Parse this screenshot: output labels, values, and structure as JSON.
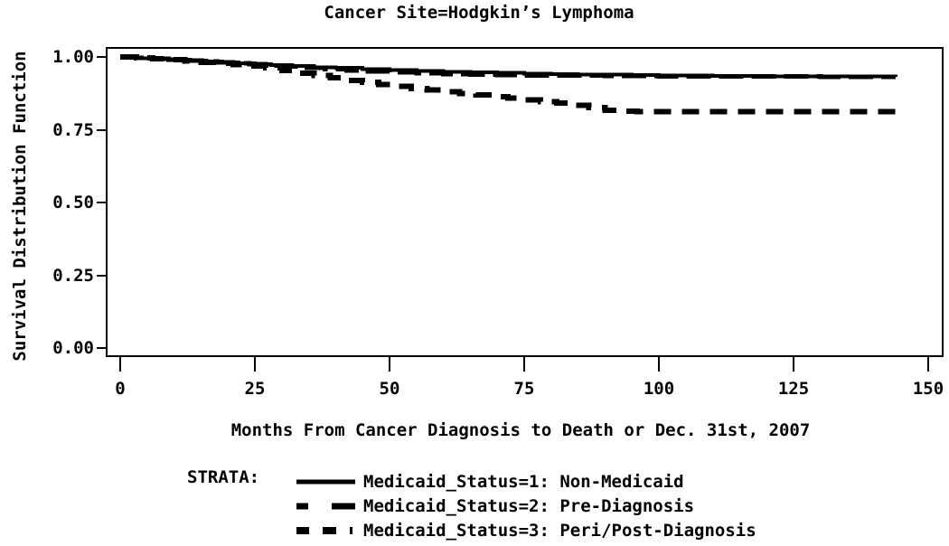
{
  "title": "Cancer Site=Hodgkin’s Lymphoma",
  "x_axis": {
    "label": "Months From Cancer Diagnosis to Death or Dec. 31st, 2007",
    "ticks": [
      0,
      25,
      50,
      75,
      100,
      125,
      150
    ]
  },
  "y_axis": {
    "label": "Survival Distribution Function",
    "ticks": [
      "1.00",
      "0.75",
      "0.50",
      "0.25",
      "0.00"
    ]
  },
  "legend": {
    "title": "STRATA:"
  },
  "colors": {
    "foreground": "#000000",
    "background": "#ffffff"
  },
  "chart_data": {
    "type": "line",
    "subtype": "kaplan-meier-step-survival",
    "title": "Cancer Site=Hodgkin’s Lymphoma",
    "xlabel": "Months From Cancer Diagnosis to Death or Dec. 31st, 2007",
    "ylabel": "Survival Distribution Function",
    "xlim": [
      0,
      150
    ],
    "ylim": [
      0.0,
      1.0
    ],
    "x_ticks": [
      0,
      25,
      50,
      75,
      100,
      125,
      150
    ],
    "y_ticks": [
      0.0,
      0.25,
      0.5,
      0.75,
      1.0
    ],
    "grid": false,
    "legend_position": "below",
    "series": [
      {
        "name": "Medicaid_Status=1: Non-Medicaid",
        "line_style": "solid",
        "x": [
          0,
          2,
          4,
          7,
          10,
          13,
          16,
          19,
          22,
          25,
          28,
          32,
          36,
          40,
          45,
          50,
          55,
          60,
          65,
          70,
          75,
          80,
          85,
          90,
          95,
          100,
          105,
          110,
          120,
          130,
          144
        ],
        "y": [
          1.0,
          0.998,
          0.996,
          0.993,
          0.99,
          0.987,
          0.984,
          0.981,
          0.978,
          0.975,
          0.972,
          0.969,
          0.965,
          0.962,
          0.958,
          0.955,
          0.952,
          0.949,
          0.947,
          0.945,
          0.943,
          0.941,
          0.94,
          0.939,
          0.938,
          0.937,
          0.936,
          0.935,
          0.934,
          0.933,
          0.932
        ]
      },
      {
        "name": "Medicaid_Status=2: Pre-Diagnosis",
        "line_style": "long-dash",
        "x": [
          0,
          3,
          6,
          9,
          12,
          15,
          18,
          21,
          24,
          27,
          30,
          34,
          38,
          42,
          46,
          50,
          55,
          60,
          65,
          70,
          75,
          80,
          90,
          100,
          110,
          120,
          130,
          144
        ],
        "y": [
          1.0,
          0.997,
          0.994,
          0.991,
          0.988,
          0.985,
          0.981,
          0.978,
          0.975,
          0.971,
          0.967,
          0.962,
          0.958,
          0.954,
          0.95,
          0.947,
          0.944,
          0.941,
          0.939,
          0.938,
          0.937,
          0.936,
          0.935,
          0.934,
          0.933,
          0.933,
          0.932,
          0.932
        ]
      },
      {
        "name": "Medicaid_Status=3: Peri/Post-Diagnosis",
        "line_style": "dash",
        "x": [
          0,
          3,
          6,
          9,
          12,
          15,
          18,
          21,
          24,
          27,
          30,
          33,
          36,
          39,
          42,
          45,
          48,
          51,
          54,
          57,
          60,
          63,
          66,
          69,
          72,
          75,
          78,
          81,
          84,
          87,
          90,
          93,
          96,
          100,
          110,
          120,
          130,
          144
        ],
        "y": [
          1.0,
          0.997,
          0.994,
          0.99,
          0.986,
          0.982,
          0.978,
          0.974,
          0.969,
          0.962,
          0.953,
          0.944,
          0.936,
          0.928,
          0.92,
          0.913,
          0.906,
          0.899,
          0.892,
          0.886,
          0.88,
          0.874,
          0.869,
          0.864,
          0.859,
          0.853,
          0.847,
          0.841,
          0.834,
          0.826,
          0.817,
          0.813,
          0.812,
          0.812,
          0.812,
          0.812,
          0.812,
          0.812
        ]
      }
    ]
  }
}
